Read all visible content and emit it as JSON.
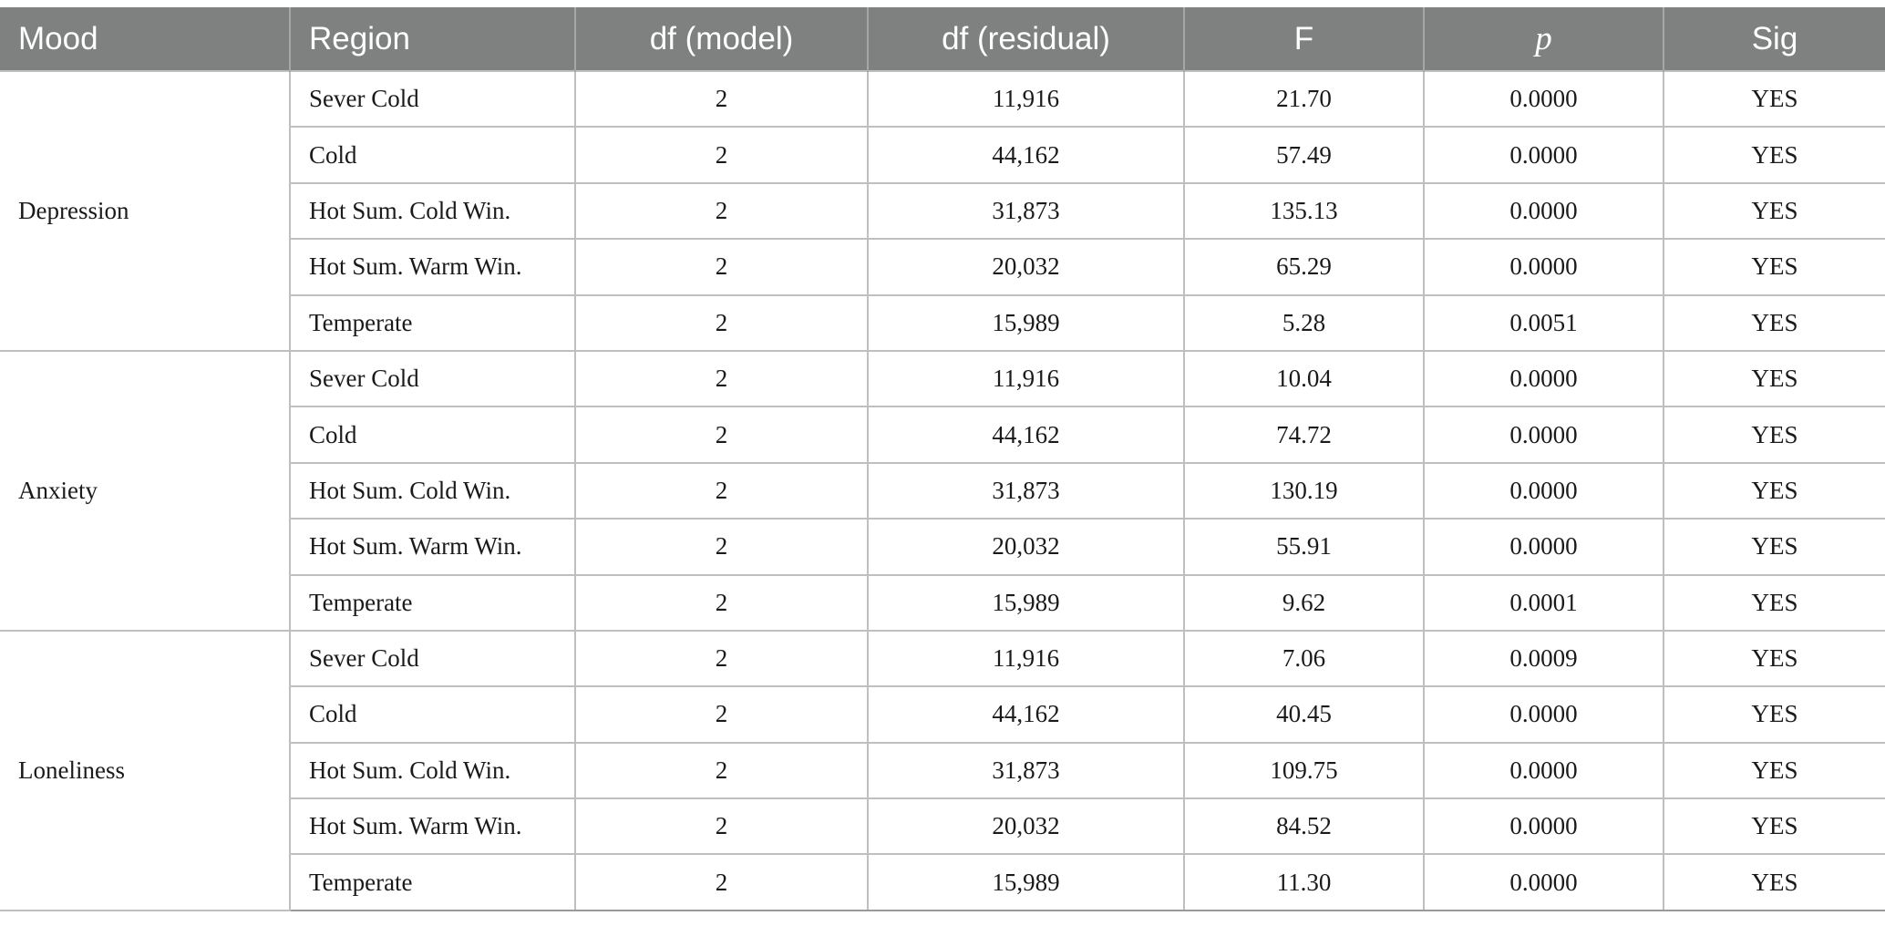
{
  "header": {
    "mood": "Mood",
    "region": "Region",
    "df_model": "df (model)",
    "df_residual": "df (residual)",
    "f": "F",
    "p": "p",
    "sig": "Sig"
  },
  "groups": [
    {
      "mood": "Depression",
      "rows": [
        {
          "region": "Sever Cold",
          "df_model": "2",
          "df_residual": "11,916",
          "f": "21.70",
          "p": "0.0000",
          "sig": "YES"
        },
        {
          "region": "Cold",
          "df_model": "2",
          "df_residual": "44,162",
          "f": "57.49",
          "p": "0.0000",
          "sig": "YES"
        },
        {
          "region": "Hot Sum. Cold Win.",
          "df_model": "2",
          "df_residual": "31,873",
          "f": "135.13",
          "p": "0.0000",
          "sig": "YES"
        },
        {
          "region": "Hot Sum. Warm Win.",
          "df_model": "2",
          "df_residual": "20,032",
          "f": "65.29",
          "p": "0.0000",
          "sig": "YES"
        },
        {
          "region": "Temperate",
          "df_model": "2",
          "df_residual": "15,989",
          "f": "5.28",
          "p": "0.0051",
          "sig": "YES"
        }
      ]
    },
    {
      "mood": "Anxiety",
      "rows": [
        {
          "region": "Sever Cold",
          "df_model": "2",
          "df_residual": "11,916",
          "f": "10.04",
          "p": "0.0000",
          "sig": "YES"
        },
        {
          "region": "Cold",
          "df_model": "2",
          "df_residual": "44,162",
          "f": "74.72",
          "p": "0.0000",
          "sig": "YES"
        },
        {
          "region": "Hot Sum. Cold Win.",
          "df_model": "2",
          "df_residual": "31,873",
          "f": "130.19",
          "p": "0.0000",
          "sig": "YES"
        },
        {
          "region": "Hot Sum. Warm Win.",
          "df_model": "2",
          "df_residual": "20,032",
          "f": "55.91",
          "p": "0.0000",
          "sig": "YES"
        },
        {
          "region": "Temperate",
          "df_model": "2",
          "df_residual": "15,989",
          "f": "9.62",
          "p": "0.0001",
          "sig": "YES"
        }
      ]
    },
    {
      "mood": "Loneliness",
      "rows": [
        {
          "region": "Sever Cold",
          "df_model": "2",
          "df_residual": "11,916",
          "f": "7.06",
          "p": "0.0009",
          "sig": "YES"
        },
        {
          "region": "Cold",
          "df_model": "2",
          "df_residual": "44,162",
          "f": "40.45",
          "p": "0.0000",
          "sig": "YES"
        },
        {
          "region": "Hot Sum. Cold Win.",
          "df_model": "2",
          "df_residual": "31,873",
          "f": "109.75",
          "p": "0.0000",
          "sig": "YES"
        },
        {
          "region": "Hot Sum. Warm Win.",
          "df_model": "2",
          "df_residual": "20,032",
          "f": "84.52",
          "p": "0.0000",
          "sig": "YES"
        },
        {
          "region": "Temperate",
          "df_model": "2",
          "df_residual": "15,989",
          "f": "11.30",
          "p": "0.0000",
          "sig": "YES"
        }
      ]
    }
  ]
}
